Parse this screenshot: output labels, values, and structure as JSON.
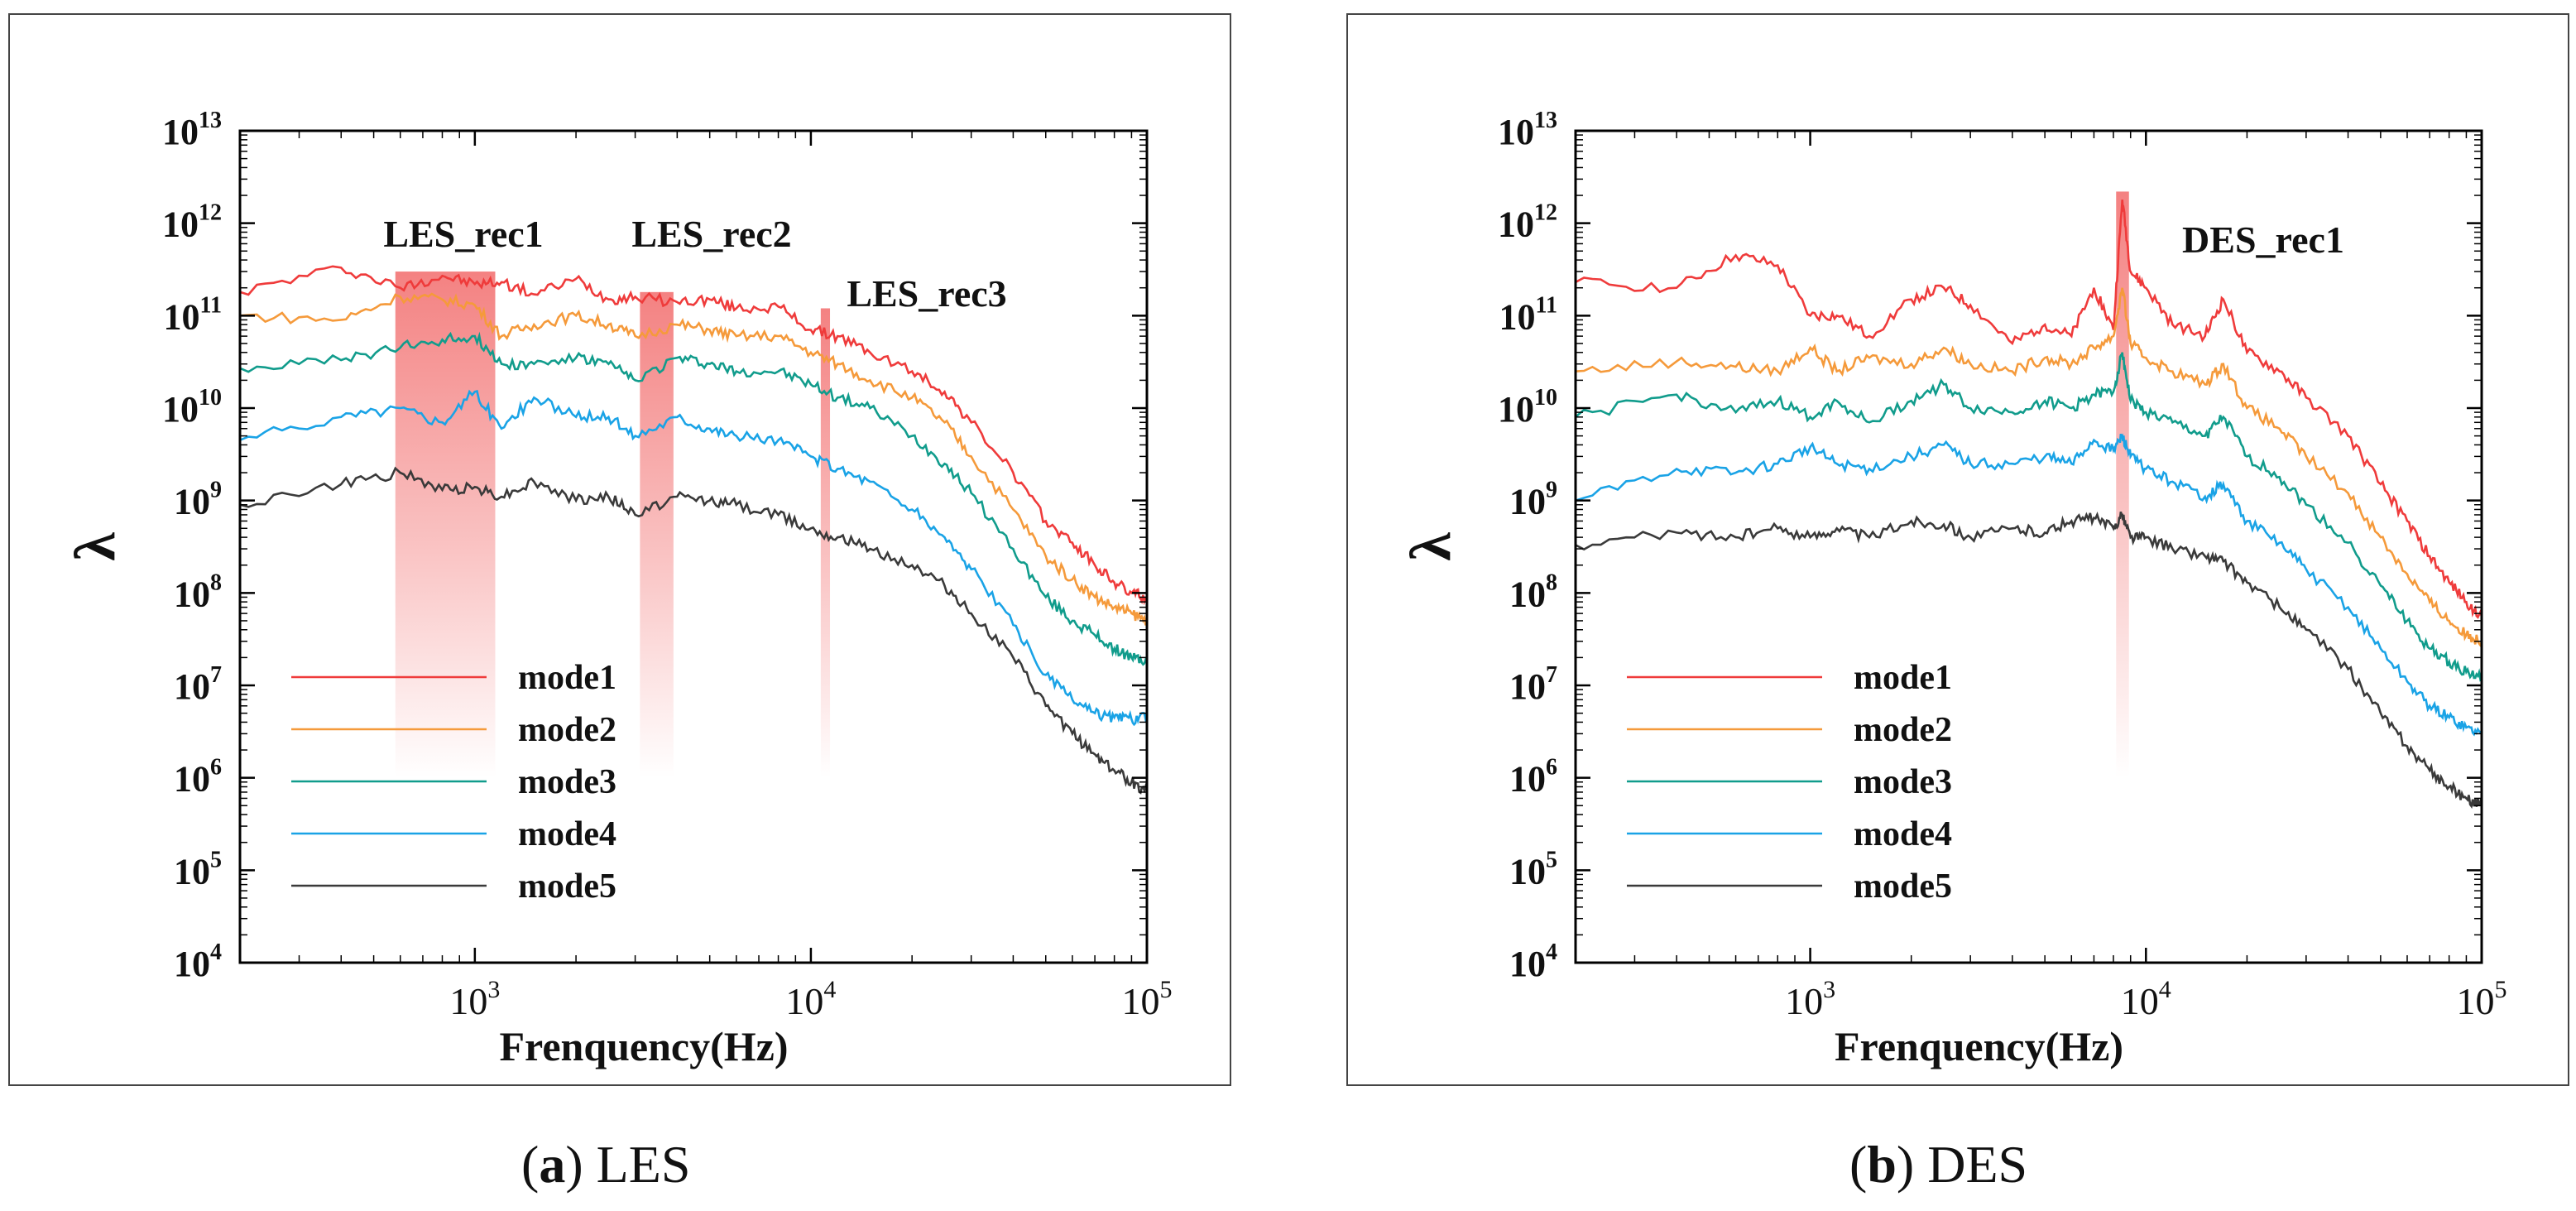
{
  "figure": {
    "caption_a": {
      "letter": "a",
      "text": "LES"
    },
    "caption_b": {
      "letter": "b",
      "text": "DES"
    }
  },
  "colors": {
    "mode1": "#ef3b3b",
    "mode2": "#f59a3b",
    "mode3": "#119c8c",
    "mode4": "#1aa3e6",
    "mode5": "#3a3a3a",
    "highlight": "#f37b7b"
  },
  "chart_data": [
    {
      "type": "line",
      "panel": "a",
      "xlabel": "Frenquency(Hz)",
      "ylabel": "λ",
      "x_scale": "log",
      "y_scale": "log",
      "xlim": [
        200,
        100000
      ],
      "ylim": [
        10000,
        10000000000000
      ],
      "x_ticks": [
        {
          "base": "10",
          "exp": "3",
          "value": 1000
        },
        {
          "base": "10",
          "exp": "4",
          "value": 10000
        },
        {
          "base": "10",
          "exp": "5",
          "value": 100000
        }
      ],
      "y_ticks": [
        {
          "base": "10",
          "exp": "4",
          "value": 10000.0
        },
        {
          "base": "10",
          "exp": "5",
          "value": 100000.0
        },
        {
          "base": "10",
          "exp": "6",
          "value": 1000000.0
        },
        {
          "base": "10",
          "exp": "7",
          "value": 10000000.0
        },
        {
          "base": "10",
          "exp": "8",
          "value": 100000000.0
        },
        {
          "base": "10",
          "exp": "9",
          "value": 1000000000.0
        },
        {
          "base": "10",
          "exp": "10",
          "value": 10000000000.0
        },
        {
          "base": "10",
          "exp": "11",
          "value": 100000000000.0
        },
        {
          "base": "10",
          "exp": "12",
          "value": 1000000000000.0
        },
        {
          "base": "10",
          "exp": "13",
          "value": 10000000000000.0
        }
      ],
      "legend": {
        "placement": "lower-left",
        "entries": [
          "mode1",
          "mode2",
          "mode3",
          "mode4",
          "mode5"
        ]
      },
      "series": [
        {
          "name": "mode1",
          "color_key": "mode1",
          "x": [
            200,
            400,
            600,
            800,
            1000,
            1200,
            1500,
            2000,
            2500,
            3000,
            4000,
            5000,
            6000,
            8000,
            10000,
            12000,
            15000,
            20000,
            25000,
            30000,
            40000,
            50000,
            60000,
            70000,
            80000,
            90000,
            100000
          ],
          "y": [
            180000000000.0,
            330000000000.0,
            200000000000.0,
            270000000000.0,
            220000000000.0,
            230000000000.0,
            170000000000.0,
            250000000000.0,
            150000000000.0,
            160000000000.0,
            140000000000.0,
            150000000000.0,
            120000000000.0,
            125000000000.0,
            70000000000.0,
            60000000000.0,
            40000000000.0,
            25000000000.0,
            15000000000.0,
            7000000000.0,
            2000000000.0,
            600000000.0,
            350000000.0,
            200000000.0,
            130000000.0,
            100000000.0,
            90000000.0
          ]
        },
        {
          "name": "mode2",
          "color_key": "mode2",
          "x": [
            200,
            400,
            600,
            800,
            1000,
            1200,
            1500,
            2000,
            2500,
            3000,
            4000,
            5000,
            6000,
            8000,
            10000,
            12000,
            15000,
            20000,
            25000,
            30000,
            40000,
            50000,
            60000,
            70000,
            80000,
            90000,
            100000
          ],
          "y": [
            100000000000.0,
            90000000000.0,
            160000000000.0,
            150000000000.0,
            130000000000.0,
            60000000000.0,
            80000000000.0,
            100000000000.0,
            80000000000.0,
            60000000000.0,
            80000000000.0,
            70000000000.0,
            60000000000.0,
            60000000000.0,
            40000000000.0,
            30000000000.0,
            20000000000.0,
            13000000000.0,
            7000000000.0,
            3000000000.0,
            800000000.0,
            250000000.0,
            140000000.0,
            90000000.0,
            70000000.0,
            60000000.0,
            50000000.0
          ]
        },
        {
          "name": "mode3",
          "color_key": "mode3",
          "x": [
            200,
            400,
            600,
            800,
            1000,
            1200,
            1500,
            2000,
            2500,
            3000,
            4000,
            5000,
            6000,
            8000,
            10000,
            12000,
            15000,
            20000,
            25000,
            30000,
            40000,
            50000,
            60000,
            70000,
            80000,
            90000,
            100000
          ],
          "y": [
            27000000000.0,
            33000000000.0,
            45000000000.0,
            55000000000.0,
            60000000000.0,
            30000000000.0,
            30000000000.0,
            35000000000.0,
            30000000000.0,
            20000000000.0,
            35000000000.0,
            30000000000.0,
            25000000000.0,
            25000000000.0,
            18000000000.0,
            13000000000.0,
            10000000000.0,
            5000000000.0,
            2500000000.0,
            1200000000.0,
            300000000.0,
            90000000.0,
            50000000.0,
            35000000.0,
            25000000.0,
            20000000.0,
            18000000.0
          ]
        },
        {
          "name": "mode4",
          "color_key": "mode4",
          "x": [
            200,
            400,
            600,
            800,
            1000,
            1200,
            1500,
            2000,
            2500,
            3000,
            4000,
            5000,
            6000,
            8000,
            10000,
            12000,
            15000,
            20000,
            25000,
            30000,
            40000,
            50000,
            60000,
            70000,
            80000,
            90000,
            100000
          ],
          "y": [
            4500000000.0,
            8000000000.0,
            10000000000.0,
            7000000000.0,
            15000000000.0,
            6000000000.0,
            13000000000.0,
            8000000000.0,
            8000000000.0,
            5000000000.0,
            8000000000.0,
            6000000000.0,
            5000000000.0,
            4500000000.0,
            3000000000.0,
            2200000000.0,
            1600000000.0,
            800000000.0,
            400000000.0,
            180000000.0,
            45000000.0,
            13000000.0,
            7000000.0,
            5000000.0,
            4500000.0,
            4300000.0,
            4500000.0
          ]
        },
        {
          "name": "mode5",
          "color_key": "mode5",
          "x": [
            200,
            400,
            600,
            800,
            1000,
            1200,
            1500,
            2000,
            2500,
            3000,
            4000,
            5000,
            6000,
            8000,
            10000,
            12000,
            15000,
            20000,
            25000,
            30000,
            40000,
            50000,
            60000,
            70000,
            80000,
            90000,
            100000
          ],
          "y": [
            900000000.0,
            1500000000.0,
            2000000000.0,
            1300000000.0,
            1400000000.0,
            1100000000.0,
            1600000000.0,
            1000000000.0,
            1100000000.0,
            700000000.0,
            1100000000.0,
            1000000000.0,
            900000000.0,
            700000000.0,
            500000000.0,
            400000000.0,
            300000000.0,
            200000000.0,
            120000000.0,
            60000000.0,
            20000000.0,
            6000000.0,
            3000000.0,
            1800000.0,
            1200000.0,
            900000.0,
            700000.0
          ]
        }
      ],
      "annotations": [
        {
          "text": "LES_rec1",
          "band_x": [
            580,
            1150
          ],
          "band_top": 300000000000.0
        },
        {
          "text": "LES_rec2",
          "band_x": [
            3100,
            3900
          ],
          "band_top": 180000000000.0
        },
        {
          "text": "LES_rec3",
          "band_x": [
            10700,
            11400
          ],
          "band_top": 120000000000.0
        }
      ]
    },
    {
      "type": "line",
      "panel": "b",
      "xlabel": "Frenquency(Hz)",
      "ylabel": "λ",
      "x_scale": "log",
      "y_scale": "log",
      "xlim": [
        200,
        100000
      ],
      "ylim": [
        10000,
        10000000000000
      ],
      "x_ticks": [
        {
          "base": "10",
          "exp": "3",
          "value": 1000
        },
        {
          "base": "10",
          "exp": "4",
          "value": 10000
        },
        {
          "base": "10",
          "exp": "5",
          "value": 100000
        }
      ],
      "y_ticks": [
        {
          "base": "10",
          "exp": "4",
          "value": 10000.0
        },
        {
          "base": "10",
          "exp": "5",
          "value": 100000.0
        },
        {
          "base": "10",
          "exp": "6",
          "value": 1000000.0
        },
        {
          "base": "10",
          "exp": "7",
          "value": 10000000.0
        },
        {
          "base": "10",
          "exp": "8",
          "value": 100000000.0
        },
        {
          "base": "10",
          "exp": "9",
          "value": 1000000000.0
        },
        {
          "base": "10",
          "exp": "10",
          "value": 10000000000.0
        },
        {
          "base": "10",
          "exp": "11",
          "value": 100000000000.0
        },
        {
          "base": "10",
          "exp": "12",
          "value": 1000000000000.0
        },
        {
          "base": "10",
          "exp": "13",
          "value": 10000000000000.0
        }
      ],
      "legend": {
        "placement": "lower-left",
        "entries": [
          "mode1",
          "mode2",
          "mode3",
          "mode4",
          "mode5"
        ]
      },
      "series": [
        {
          "name": "mode1",
          "color_key": "mode1",
          "x": [
            200,
            400,
            600,
            800,
            1000,
            1200,
            1500,
            2000,
            2500,
            3000,
            4000,
            5000,
            6000,
            7000,
            8000,
            8500,
            9000,
            10000,
            12000,
            15000,
            17000,
            20000,
            25000,
            30000,
            40000,
            50000,
            60000,
            70000,
            80000,
            90000,
            100000
          ],
          "y": [
            230000000000.0,
            200000000000.0,
            450000000000.0,
            350000000000.0,
            100000000000.0,
            100000000000.0,
            60000000000.0,
            150000000000.0,
            200000000000.0,
            130000000000.0,
            50000000000.0,
            80000000000.0,
            60000000000.0,
            200000000000.0,
            70000000000.0,
            1800000000000.0,
            300000000000.0,
            200000000000.0,
            80000000000.0,
            60000000000.0,
            150000000000.0,
            40000000000.0,
            25000000000.0,
            13000000000.0,
            5000000000.0,
            1500000000.0,
            600000000.0,
            250000000.0,
            130000000.0,
            80000000.0,
            55000000.0
          ]
        },
        {
          "name": "mode2",
          "color_key": "mode2",
          "x": [
            200,
            400,
            600,
            800,
            1000,
            1200,
            1500,
            2000,
            2500,
            3000,
            4000,
            5000,
            6000,
            7000,
            8000,
            8500,
            9000,
            10000,
            12000,
            15000,
            17000,
            20000,
            25000,
            30000,
            40000,
            50000,
            60000,
            70000,
            80000,
            90000,
            100000
          ],
          "y": [
            25000000000.0,
            32000000000.0,
            28000000000.0,
            25000000000.0,
            45000000000.0,
            25000000000.0,
            35000000000.0,
            30000000000.0,
            45000000000.0,
            30000000000.0,
            25000000000.0,
            35000000000.0,
            30000000000.0,
            45000000000.0,
            60000000000.0,
            200000000000.0,
            50000000000.0,
            35000000000.0,
            25000000000.0,
            18000000000.0,
            30000000000.0,
            10000000000.0,
            6000000000.0,
            3000000000.0,
            1200000000.0,
            400000000.0,
            160000000.0,
            80000000.0,
            50000000.0,
            35000000.0,
            30000000.0
          ]
        },
        {
          "name": "mode3",
          "color_key": "mode3",
          "x": [
            200,
            400,
            600,
            800,
            1000,
            1200,
            1500,
            2000,
            2500,
            3000,
            4000,
            5000,
            6000,
            7000,
            8000,
            8500,
            9000,
            10000,
            12000,
            15000,
            17000,
            20000,
            25000,
            30000,
            40000,
            50000,
            60000,
            70000,
            80000,
            90000,
            100000
          ],
          "y": [
            8000000000.0,
            14000000000.0,
            9000000000.0,
            12000000000.0,
            8000000000.0,
            12000000000.0,
            7000000000.0,
            12000000000.0,
            18000000000.0,
            10000000000.0,
            9000000000.0,
            12000000000.0,
            10000000000.0,
            14000000000.0,
            15000000000.0,
            40000000000.0,
            12000000000.0,
            9000000000.0,
            7000000000.0,
            5000000000.0,
            8000000000.0,
            3000000000.0,
            1800000000.0,
            900000000.0,
            350000000.0,
            120000000.0,
            50000000.0,
            25000000.0,
            18000000.0,
            14000000.0,
            12000000.0
          ]
        },
        {
          "name": "mode4",
          "color_key": "mode4",
          "x": [
            200,
            400,
            600,
            800,
            1000,
            1200,
            1500,
            2000,
            2500,
            3000,
            4000,
            5000,
            6000,
            7000,
            8000,
            8500,
            9000,
            10000,
            12000,
            15000,
            17000,
            20000,
            25000,
            30000,
            40000,
            50000,
            60000,
            70000,
            80000,
            90000,
            100000
          ],
          "y": [
            1000000000.0,
            2200000000.0,
            2000000000.0,
            2500000000.0,
            3800000000.0,
            2500000000.0,
            2200000000.0,
            3000000000.0,
            4000000000.0,
            2500000000.0,
            2500000000.0,
            3000000000.0,
            2500000000.0,
            4500000000.0,
            3500000000.0,
            5000000000.0,
            3000000000.0,
            2200000000.0,
            1600000000.0,
            1100000000.0,
            1500000000.0,
            600000000.0,
            350000000.0,
            180000000.0,
            70000000.0,
            25000000.0,
            11000000.0,
            6000000.0,
            4500000.0,
            3500000.0,
            3000000.0
          ]
        },
        {
          "name": "mode5",
          "color_key": "mode5",
          "x": [
            200,
            400,
            600,
            800,
            1000,
            1200,
            1500,
            2000,
            2500,
            3000,
            4000,
            5000,
            6000,
            7000,
            8000,
            8500,
            9000,
            10000,
            12000,
            15000,
            17000,
            20000,
            25000,
            30000,
            40000,
            50000,
            60000,
            70000,
            80000,
            90000,
            100000
          ],
          "y": [
            330000000.0,
            450000000.0,
            400000000.0,
            500000000.0,
            400000000.0,
            500000000.0,
            400000000.0,
            600000000.0,
            550000000.0,
            400000000.0,
            500000000.0,
            450000000.0,
            600000000.0,
            650000000.0,
            500000000.0,
            700000000.0,
            400000000.0,
            400000000.0,
            300000000.0,
            250000000.0,
            220000000.0,
            130000000.0,
            70000000.0,
            40000000.0,
            15000000.0,
            5000000.0,
            2200000.0,
            1200000.0,
            800000.0,
            600000.0,
            500000.0
          ]
        }
      ],
      "annotations": [
        {
          "text": "DES_rec1",
          "band_x": [
            8150,
            8900
          ],
          "band_top": 2200000000000.0
        }
      ]
    }
  ]
}
